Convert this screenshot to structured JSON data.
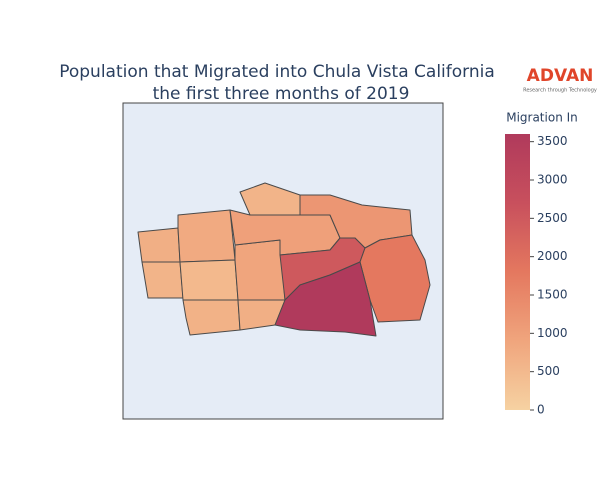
{
  "chart_data": {
    "type": "choropleth",
    "title": [
      "Population that Migrated into Chula Vista California",
      "the first three months of 2019"
    ],
    "colorbar_title": "Migration In",
    "logo": {
      "name": "ADVAN",
      "tagline": "Research through Technology"
    },
    "values": [
      700,
      600,
      800,
      500,
      650,
      900,
      700,
      600,
      1000,
      2500,
      1200,
      1800,
      3600
    ],
    "zlim": [
      0,
      3600
    ],
    "zticks": [
      0,
      500,
      1000,
      1500,
      2000,
      2500,
      3000,
      3500
    ],
    "colorscale": [
      "#f6d2a2",
      "#f0a57d",
      "#e4785f",
      "#c8505d",
      "#b03a5c"
    ]
  }
}
